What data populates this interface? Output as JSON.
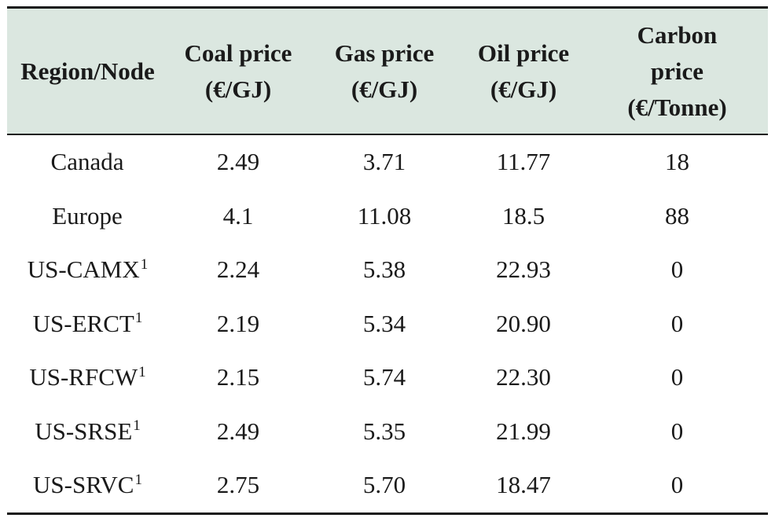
{
  "table": {
    "headers": [
      [
        "Region/Node"
      ],
      [
        "Coal price",
        "(€/GJ)"
      ],
      [
        "Gas price",
        "(€/GJ)"
      ],
      [
        "Oil price",
        "(€/GJ)"
      ],
      [
        "Carbon",
        "price",
        "(€/Tonne)"
      ]
    ],
    "rows": [
      {
        "region": "Canada",
        "note": "",
        "coal": "2.49",
        "gas": "3.71",
        "oil": "11.77",
        "carbon": "18"
      },
      {
        "region": "Europe",
        "note": "",
        "coal": "4.1",
        "gas": "11.08",
        "oil": "18.5",
        "carbon": "88"
      },
      {
        "region": "US-CAMX",
        "note": "1",
        "coal": "2.24",
        "gas": "5.38",
        "oil": "22.93",
        "carbon": "0"
      },
      {
        "region": "US-ERCT",
        "note": "1",
        "coal": "2.19",
        "gas": "5.34",
        "oil": "20.90",
        "carbon": "0"
      },
      {
        "region": "US-RFCW",
        "note": "1",
        "coal": "2.15",
        "gas": "5.74",
        "oil": "22.30",
        "carbon": "0"
      },
      {
        "region": "US-SRSE",
        "note": "1",
        "coal": "2.49",
        "gas": "5.35",
        "oil": "21.99",
        "carbon": "0"
      },
      {
        "region": "US-SRVC",
        "note": "1",
        "coal": "2.75",
        "gas": "5.70",
        "oil": "18.47",
        "carbon": "0"
      }
    ]
  },
  "colors": {
    "header_background": "#dbe7e0",
    "rule": "#1a1a1a"
  }
}
